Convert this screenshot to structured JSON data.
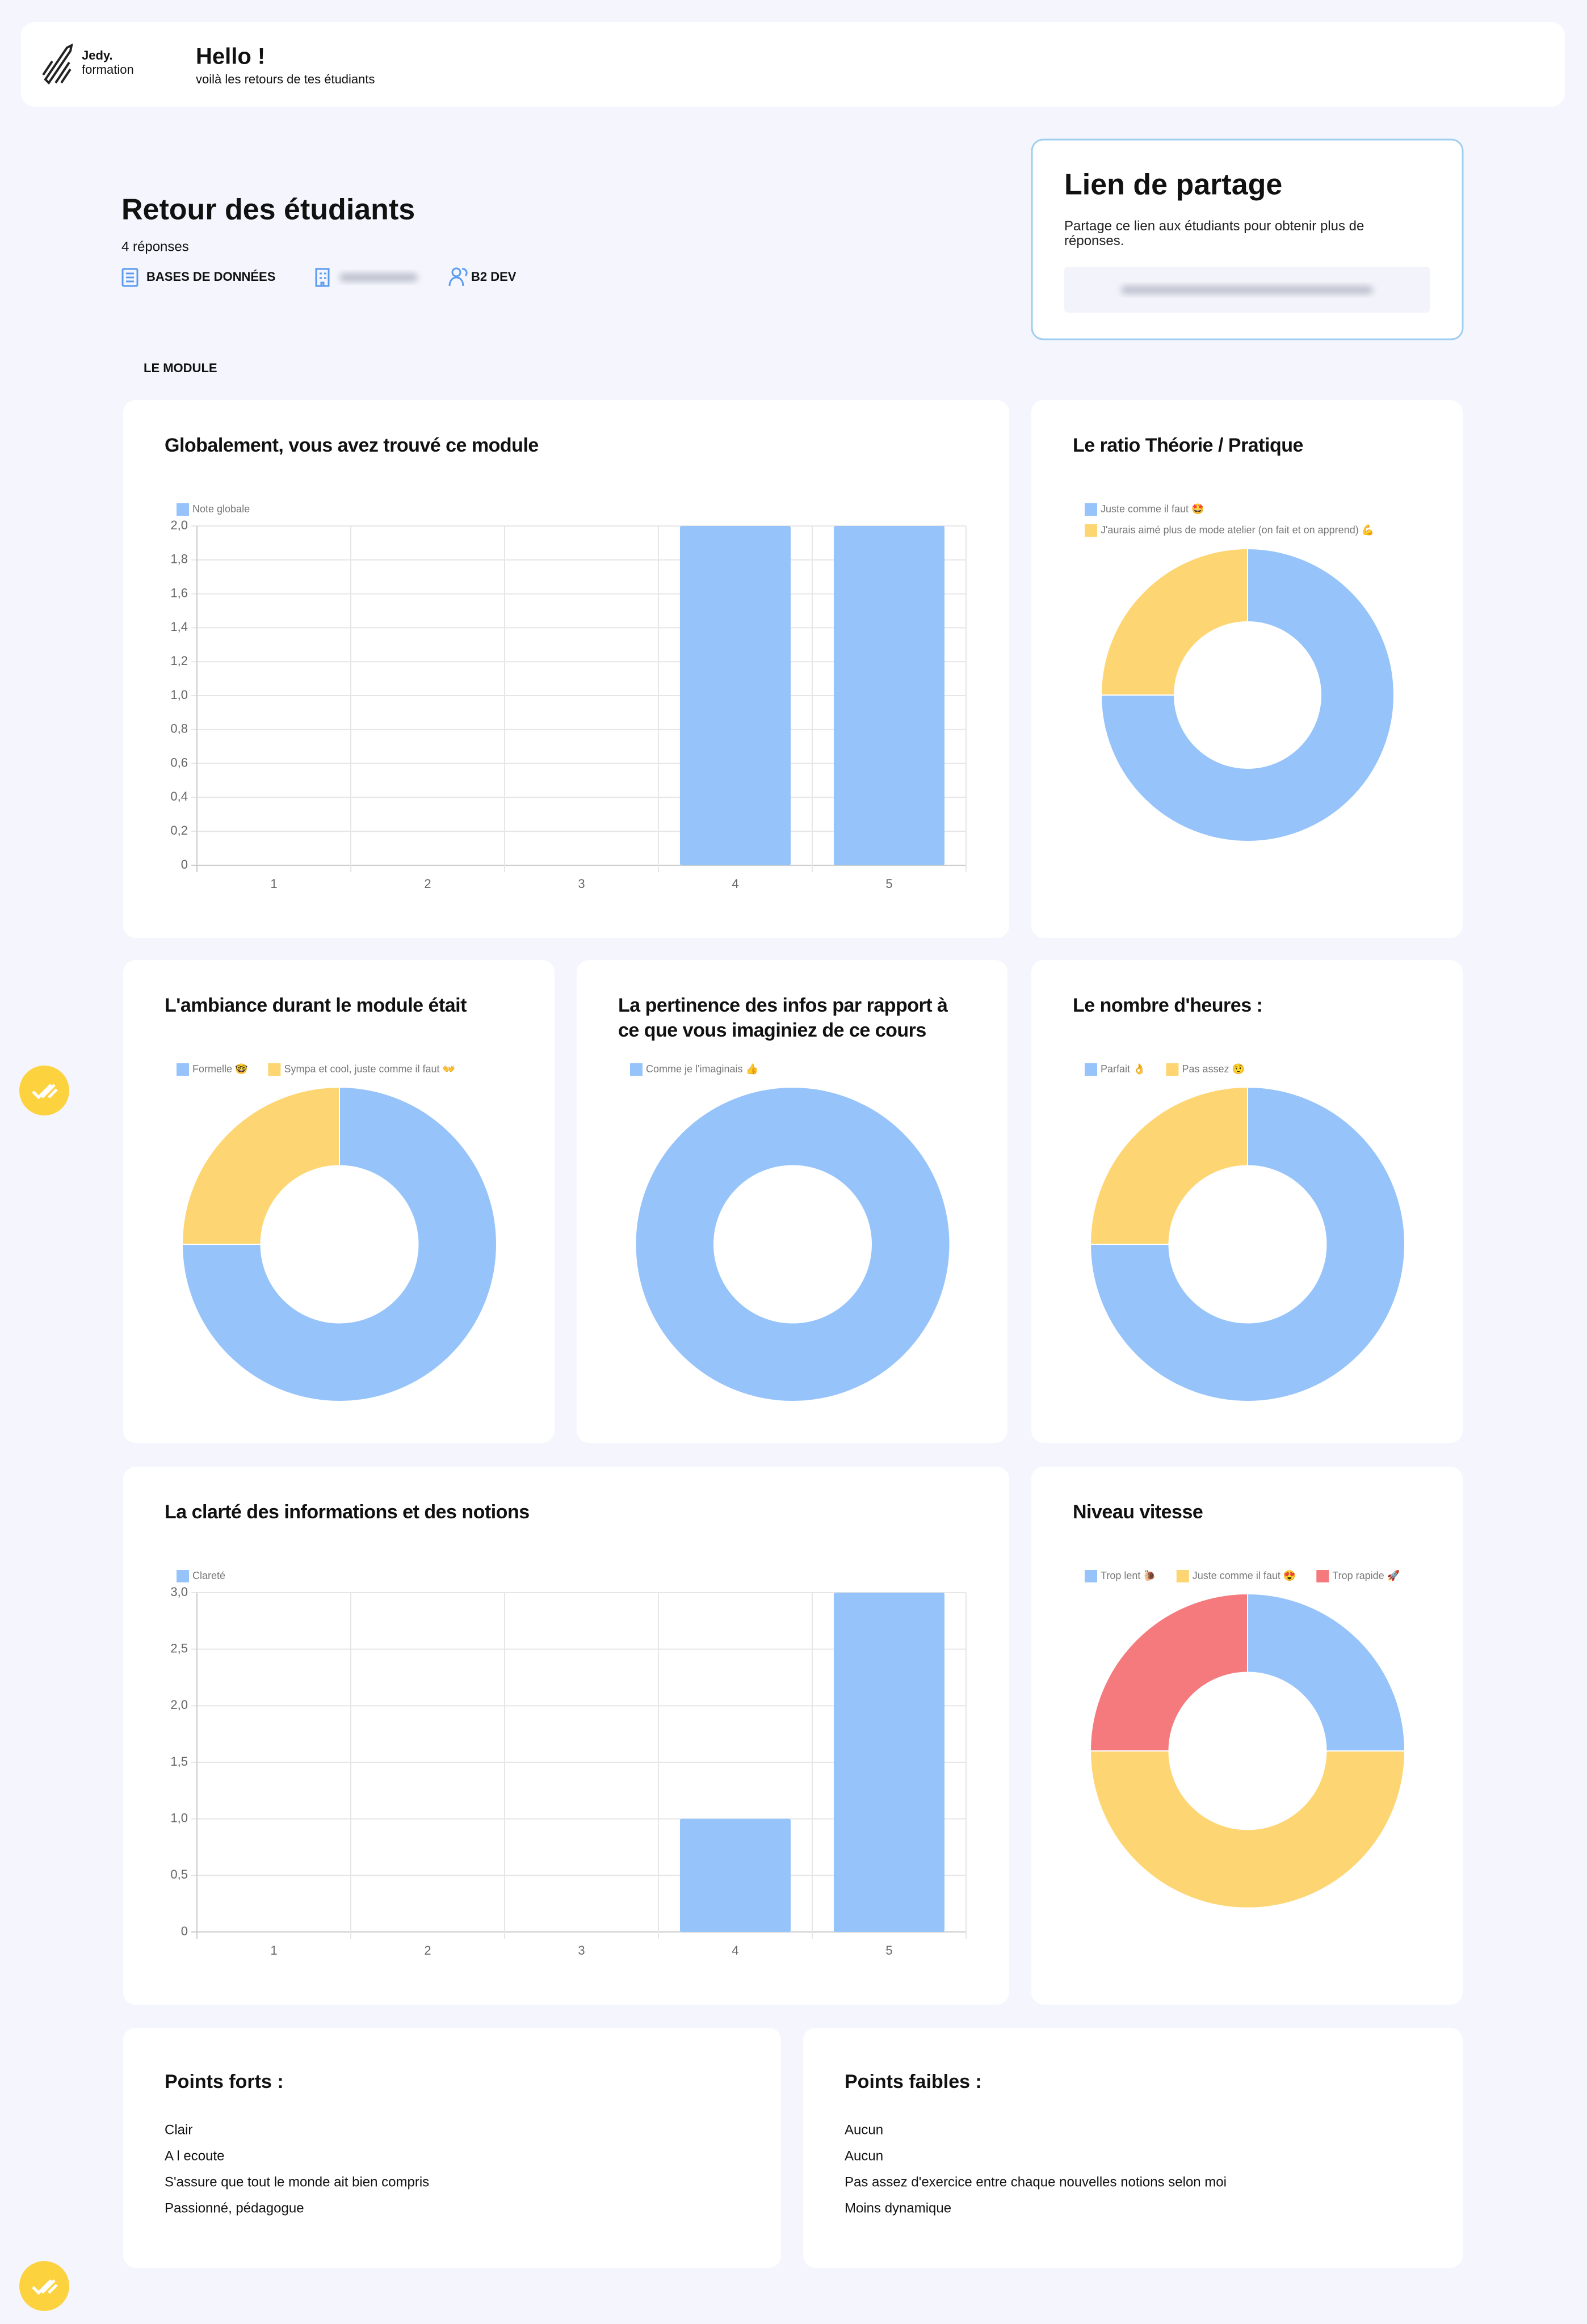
{
  "header": {
    "brand": "Jedy.",
    "brand_sub": "formation",
    "title": "Hello !",
    "subtitle": "voilà les retours de tes étudiants"
  },
  "summary": {
    "title": "Retour des étudiants",
    "responses": "4 réponses",
    "tags": [
      "BASES DE DONNÉES",
      "B2 DEV"
    ]
  },
  "share": {
    "title": "Lien de partage",
    "text": "Partage ce lien aux étudiants pour obtenir plus de réponses."
  },
  "section": "LE MODULE",
  "chart_data": [
    {
      "type": "bar",
      "title": "Globalement, vous avez trouvé ce module",
      "categories": [
        "1",
        "2",
        "3",
        "4",
        "5"
      ],
      "series": [
        {
          "name": "Note globale",
          "color": "#96c4fa",
          "values": [
            0,
            0,
            0,
            2,
            2
          ]
        }
      ],
      "ylim": [
        0,
        2
      ],
      "yticks": [
        0,
        {
          "value": 0.2,
          "label": "0,2"
        },
        {
          "value": 0.4,
          "label": "0,4"
        },
        {
          "value": 0.6,
          "label": "0,6"
        },
        {
          "value": 0.8,
          "label": "0,8"
        },
        {
          "value": 1,
          "label": "1,0"
        },
        {
          "value": 1.2,
          "label": "1,2"
        },
        {
          "value": 1.4,
          "label": "1,4"
        },
        {
          "value": 1.6,
          "label": "1,6"
        },
        {
          "value": 1.8,
          "label": "1,8"
        },
        {
          "value": 2,
          "label": "2,0"
        }
      ],
      "grid": true
    },
    {
      "type": "doughnut",
      "title": "Le ratio Théorie / Pratique",
      "categories": [
        "Juste comme il faut 🤩",
        "J'aurais aimé plus de mode atelier (on fait et on apprend) 💪"
      ],
      "values": [
        3,
        1
      ],
      "colors": [
        "#96c4fa",
        "#fdd673"
      ]
    },
    {
      "type": "doughnut",
      "title": "L'ambiance durant le module était",
      "categories": [
        "Formelle 🤓",
        "Sympa et cool, juste comme il faut 👐"
      ],
      "values": [
        3,
        1
      ],
      "colors": [
        "#96c4fa",
        "#fdd673"
      ]
    },
    {
      "type": "doughnut",
      "title": "La pertinence des infos par rapport à ce que vous imaginiez de ce cours",
      "categories": [
        "Comme je l'imaginais 👍"
      ],
      "values": [
        4
      ],
      "colors": [
        "#96c4fa"
      ]
    },
    {
      "type": "doughnut",
      "title": "Le nombre d'heures :",
      "categories": [
        "Parfait 👌",
        "Pas assez 🤨"
      ],
      "values": [
        3,
        1
      ],
      "colors": [
        "#96c4fa",
        "#fdd673"
      ]
    },
    {
      "type": "bar",
      "title": "La clarté des informations et des notions",
      "categories": [
        "1",
        "2",
        "3",
        "4",
        "5"
      ],
      "series": [
        {
          "name": "Clareté",
          "color": "#96c4fa",
          "values": [
            0,
            0,
            0,
            1,
            3
          ]
        }
      ],
      "ylim": [
        0,
        3
      ],
      "yticks": [
        0,
        {
          "value": 0.5,
          "label": "0,5"
        },
        {
          "value": 1,
          "label": "1,0"
        },
        {
          "value": 1.5,
          "label": "1,5"
        },
        {
          "value": 2,
          "label": "2,0"
        },
        {
          "value": 2.5,
          "label": "2,5"
        },
        {
          "value": 3,
          "label": "3,0"
        }
      ],
      "grid": true
    },
    {
      "type": "doughnut",
      "title": "Niveau vitesse",
      "categories": [
        "Trop lent 🐌",
        "Juste comme il faut 😍",
        "Trop rapide 🚀"
      ],
      "values": [
        1,
        2,
        1
      ],
      "colors": [
        "#96c4fa",
        "#fdd673",
        "#f47a7e"
      ]
    }
  ],
  "lists": [
    {
      "title": "Points forts :",
      "items": [
        "Clair",
        "A l ecoute",
        "S'assure que tout le monde ait bien compris",
        "Passionné, pédagogue"
      ]
    },
    {
      "title": "Points faibles :",
      "items": [
        "Aucun",
        "Aucun",
        "Pas assez d'exercice entre chaque nouvelles notions selon moi",
        "Moins dynamique"
      ]
    }
  ]
}
